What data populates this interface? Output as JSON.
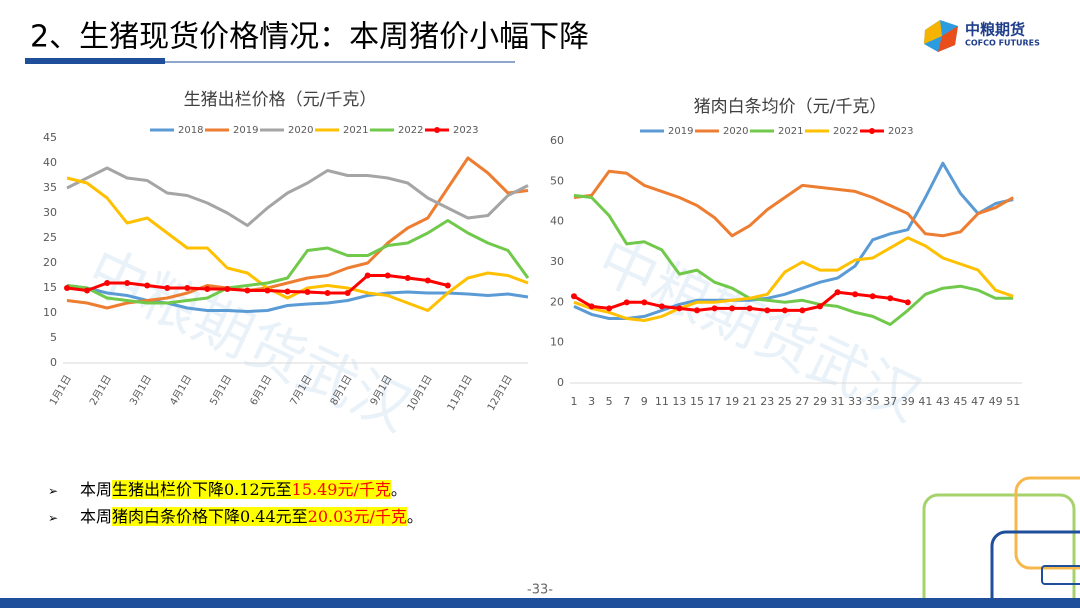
{
  "header": {
    "title": "2、生猪现货价格情况：本周猪价小幅下降",
    "logo_cn": "中粮期货",
    "logo_en": "COFCO FUTURES"
  },
  "watermark": "中粮期货武汉",
  "chart_data": [
    {
      "type": "line",
      "title": "生猪出栏价格（元/千克）",
      "categories": [
        "1月1日",
        null,
        "2月1日",
        null,
        "3月1日",
        null,
        "4月1日",
        null,
        "5月1日",
        null,
        "6月1日",
        null,
        "7月1日",
        null,
        "8月1日",
        null,
        "9月1日",
        null,
        "10月1日",
        null,
        "11月1日",
        null,
        "12月1日",
        null
      ],
      "ylim": [
        0,
        45
      ],
      "yticks": [
        0,
        5,
        10,
        15,
        20,
        25,
        30,
        35,
        40,
        45
      ],
      "series": [
        {
          "name": "2018",
          "color": "#5b9bd5",
          "values": [
            15.5,
            15,
            14,
            13.5,
            12.5,
            12,
            11,
            10.5,
            10.5,
            10.3,
            10.5,
            11.5,
            11.8,
            12,
            12.5,
            13.5,
            14,
            14.2,
            14,
            14,
            13.8,
            13.5,
            13.8,
            13.2
          ]
        },
        {
          "name": "2019",
          "color": "#ed7d31",
          "values": [
            12.5,
            12,
            11,
            12,
            12.5,
            13,
            14,
            15.5,
            15,
            14.5,
            15,
            16,
            17,
            17.5,
            19,
            20,
            24,
            27,
            29,
            35,
            41,
            38,
            34,
            34.5
          ]
        },
        {
          "name": "2020",
          "color": "#a5a5a5",
          "values": [
            35,
            37,
            39,
            37,
            36.5,
            34,
            33.5,
            32,
            30,
            27.5,
            31,
            34,
            36,
            38.5,
            37.5,
            37.5,
            37,
            36,
            33,
            31,
            29,
            29.5,
            33.5,
            35.5
          ]
        },
        {
          "name": "2021",
          "color": "#ffc000",
          "values": [
            37,
            36,
            33,
            28,
            29,
            26,
            23,
            23,
            19,
            18,
            15,
            13,
            15,
            15.5,
            15,
            14,
            13.5,
            12,
            10.5,
            14,
            17,
            18,
            17.5,
            16
          ]
        },
        {
          "name": "2022",
          "color": "#70c94a",
          "values": [
            15.5,
            15,
            13,
            12.5,
            12,
            12,
            12.5,
            13,
            15,
            15.5,
            16,
            17,
            22.5,
            23,
            21.5,
            21.5,
            23.5,
            24,
            26,
            28.5,
            26,
            24,
            22.5,
            17
          ]
        },
        {
          "name": "2023",
          "color": "#ff0000",
          "marker": "circle",
          "values": [
            15,
            14.5,
            16,
            16,
            15.5,
            15,
            15,
            14.8,
            14.8,
            14.5,
            14.5,
            14.3,
            14.2,
            14,
            14,
            17.5,
            17.5,
            17,
            16.5,
            15.5,
            null,
            null,
            null,
            null
          ]
        }
      ]
    },
    {
      "type": "line",
      "title": "猪肉白条均价（元/千克）",
      "x": [
        1,
        3,
        5,
        7,
        9,
        11,
        13,
        15,
        17,
        19,
        21,
        23,
        25,
        27,
        29,
        31,
        33,
        35,
        37,
        39,
        41,
        43,
        45,
        47,
        49,
        51
      ],
      "xlim": [
        1,
        52
      ],
      "xticks": [
        1,
        3,
        5,
        7,
        9,
        11,
        13,
        15,
        17,
        19,
        21,
        23,
        25,
        27,
        29,
        31,
        33,
        35,
        37,
        39,
        41,
        43,
        45,
        47,
        49,
        51
      ],
      "ylim": [
        0,
        60
      ],
      "yticks": [
        0,
        10,
        20,
        30,
        40,
        50,
        60
      ],
      "series": [
        {
          "name": "2019",
          "color": "#5b9bd5",
          "values": [
            19,
            17,
            16,
            16,
            16.5,
            18,
            19.5,
            20.5,
            20.5,
            20.5,
            20.5,
            21,
            22,
            23.5,
            25,
            26,
            29,
            35.5,
            37,
            38,
            46,
            54.5,
            47,
            42,
            44.5,
            45.5
          ]
        },
        {
          "name": "2020",
          "color": "#ed7d31",
          "values": [
            46,
            46.5,
            52.5,
            52,
            49,
            47.5,
            46,
            44,
            41,
            36.5,
            39,
            43,
            46,
            49,
            48.5,
            48,
            47.5,
            46,
            44,
            42,
            37,
            36.5,
            37.5,
            42,
            43.5,
            46
          ]
        },
        {
          "name": "2021",
          "color": "#70c94a",
          "values": [
            46.5,
            46,
            41.5,
            34.5,
            35,
            33,
            27,
            28,
            25,
            23.5,
            21,
            20.5,
            20,
            20.5,
            19.5,
            19,
            17.5,
            16.5,
            14.5,
            18,
            22,
            23.5,
            24,
            23,
            21,
            21
          ]
        },
        {
          "name": "2022",
          "color": "#ffc000",
          "values": [
            20,
            18.5,
            17.5,
            16,
            15.5,
            16.5,
            18.5,
            20,
            20,
            20.5,
            21,
            22,
            27.5,
            30,
            28,
            28,
            30.5,
            31,
            33.5,
            36,
            34,
            31,
            29.5,
            28,
            23,
            21.5
          ]
        },
        {
          "name": "2023",
          "color": "#ff0000",
          "marker": "circle",
          "values": [
            21.5,
            19,
            18.5,
            20,
            20,
            19,
            18.5,
            18,
            18.5,
            18.5,
            18.5,
            18,
            18,
            18,
            19,
            22.5,
            22,
            21.5,
            21,
            20,
            null,
            null,
            null,
            null,
            null,
            null
          ]
        }
      ]
    }
  ],
  "bullets": [
    {
      "marker": "➢",
      "parts": [
        "本周",
        "生猪出栏价下降0.12元至",
        "15.49元/千克",
        "。"
      ]
    },
    {
      "marker": "➢",
      "parts": [
        "本周",
        "猪肉白条价格下降0.44元至",
        "20.03元/千克",
        "。"
      ]
    }
  ],
  "page_number": "-33-"
}
